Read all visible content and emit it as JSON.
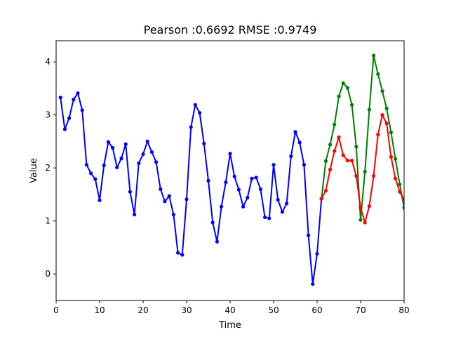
{
  "chart_data": {
    "type": "line",
    "title": "Pearson :0.6692  RMSE :0.9749",
    "xlabel": "Time",
    "ylabel": "Value",
    "xlim": [
      0,
      80
    ],
    "ylim": [
      -0.5,
      4.4
    ],
    "xticks": [
      0,
      10,
      20,
      30,
      40,
      50,
      60,
      70,
      80
    ],
    "yticks": [
      0,
      1,
      2,
      3,
      4
    ],
    "grid": false,
    "legend": "none",
    "series": [
      {
        "color": "#0000ff",
        "x": [
          1,
          2,
          3,
          4,
          5,
          6,
          7,
          8,
          9,
          10,
          11,
          12,
          13,
          14,
          15,
          16,
          17,
          18,
          19,
          20,
          21,
          22,
          23,
          24,
          25,
          26,
          27,
          28,
          29,
          30,
          31,
          32,
          33,
          34,
          35,
          36,
          37,
          38,
          39,
          40,
          41,
          42,
          43,
          44,
          45,
          46,
          47,
          48,
          49,
          50,
          51,
          52,
          53,
          54,
          55,
          56,
          57,
          58,
          59,
          60,
          61
        ],
        "values": [
          3.33,
          2.73,
          2.94,
          3.29,
          3.41,
          3.09,
          2.06,
          1.9,
          1.79,
          1.39,
          2.05,
          2.49,
          2.38,
          2.01,
          2.18,
          2.45,
          1.55,
          1.12,
          2.09,
          2.26,
          2.5,
          2.3,
          2.11,
          1.6,
          1.37,
          1.47,
          1.12,
          0.4,
          0.36,
          1.41,
          2.77,
          3.19,
          3.04,
          2.46,
          1.76,
          0.97,
          0.61,
          1.27,
          1.73,
          2.27,
          1.84,
          1.59,
          1.27,
          1.44,
          1.8,
          1.82,
          1.6,
          1.07,
          1.05,
          2.06,
          1.4,
          1.17,
          1.33,
          2.22,
          2.68,
          2.48,
          2.06,
          0.73,
          -0.19,
          0.38,
          1.42
        ]
      },
      {
        "color": "#008000",
        "x": [
          61,
          62,
          63,
          64,
          65,
          66,
          67,
          68,
          69,
          70,
          71,
          72,
          73,
          74,
          75,
          76,
          77,
          78,
          79,
          80
        ],
        "values": [
          1.42,
          2.13,
          2.44,
          2.82,
          3.35,
          3.6,
          3.51,
          3.19,
          2.4,
          1.02,
          1.93,
          3.1,
          4.12,
          3.77,
          3.45,
          3.12,
          2.67,
          2.17,
          1.69,
          1.25
        ]
      },
      {
        "color": "#ff0000",
        "x": [
          61,
          62,
          63,
          64,
          65,
          66,
          67,
          68,
          69,
          70,
          71,
          72,
          73,
          74,
          75,
          76,
          77,
          78,
          79,
          80
        ],
        "values": [
          1.42,
          1.57,
          1.97,
          2.32,
          2.58,
          2.24,
          2.14,
          2.14,
          1.85,
          1.25,
          0.97,
          1.28,
          1.85,
          2.63,
          3.0,
          2.84,
          2.21,
          1.8,
          1.55,
          1.4
        ]
      }
    ]
  }
}
